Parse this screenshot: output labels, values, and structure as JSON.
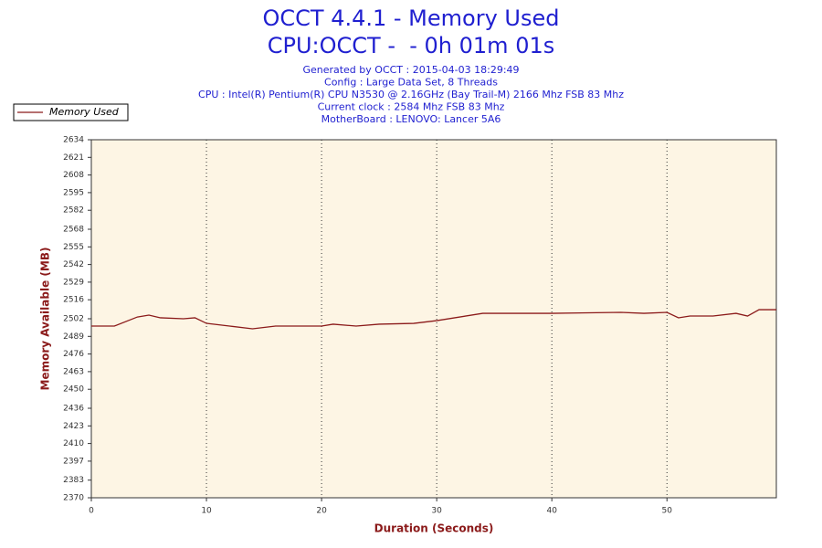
{
  "chart_data": {
    "type": "line",
    "title": [
      "OCCT 4.4.1 - Memory Used",
      "CPU:OCCT -  - 0h 01m 01s"
    ],
    "subtitle": [
      "Generated by OCCT : 2015-04-03 18:29:49",
      "Config : Large Data Set, 8 Threads",
      "CPU : Intel(R) Pentium(R) CPU N3530 @ 2.16GHz (Bay Trail-M) 2166 Mhz FSB 83 Mhz",
      "Current clock : 2584 Mhz FSB 83 Mhz",
      "MotherBoard : LENOVO: Lancer 5A6"
    ],
    "x_label": "Duration (Seconds)",
    "y_label": "Memory Available (MB)",
    "x": [
      0,
      2,
      4,
      5,
      6,
      8,
      9,
      10,
      12,
      14,
      16,
      20,
      21,
      23,
      25,
      28,
      30,
      34,
      40,
      46,
      48,
      50,
      51,
      52,
      54,
      56,
      57,
      58,
      59.5
    ],
    "series": [
      {
        "name": "Memory Used",
        "color": "#8b1a1a",
        "values": [
          2496.6,
          2496.6,
          2503.3,
          2504.7,
          2502.7,
          2502,
          2502.7,
          2498.6,
          2496.6,
          2494.6,
          2496.6,
          2496.6,
          2498,
          2496.6,
          2498,
          2498.6,
          2500.6,
          2506,
          2506,
          2506.7,
          2506,
          2506.7,
          2502.7,
          2504,
          2504,
          2506,
          2504,
          2508.7,
          2508.7
        ]
      }
    ],
    "xlim": [
      0,
      59.5
    ],
    "xticks": [
      0,
      10,
      20,
      30,
      40,
      50
    ],
    "ylim": [
      2370,
      2634
    ],
    "yticks": [
      2370,
      2383,
      2397,
      2410,
      2423,
      2436,
      2450,
      2463,
      2476,
      2489,
      2502,
      2516,
      2529,
      2542,
      2555,
      2568,
      2582,
      2595,
      2608,
      2621,
      2634
    ],
    "grid": "x",
    "legend": "top-left",
    "background": "#fdf5e4"
  }
}
